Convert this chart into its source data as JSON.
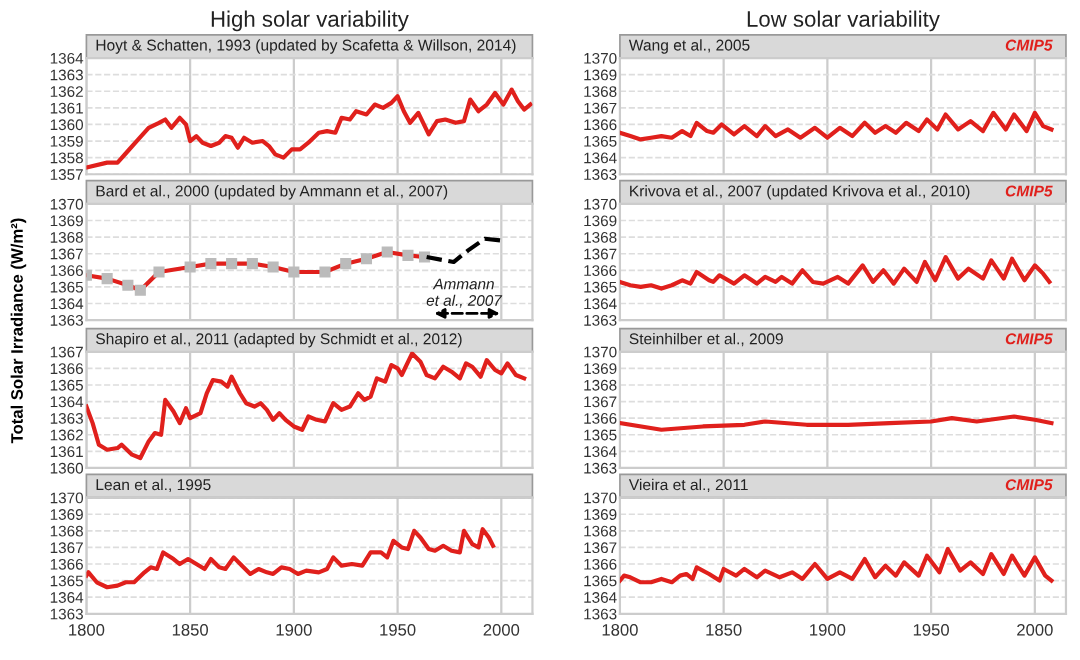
{
  "chart_data": [
    {
      "type": "line",
      "title": "High solar variability",
      "subtitle": "Hoyt & Schatten, 1993 (updated by Scafetta & Willson, 2014)",
      "xlim": [
        1800,
        2015
      ],
      "xticks": [
        1800,
        1850,
        1900,
        1950,
        2000
      ],
      "ylim": [
        1357,
        1364
      ],
      "yticks": [
        1357,
        1358,
        1359,
        1360,
        1361,
        1362,
        1363,
        1364
      ],
      "grid": true,
      "tick_labels": "y",
      "series": [
        {
          "color": "#e0201c",
          "x": [
            1800,
            1810,
            1815,
            1820,
            1825,
            1830,
            1835,
            1838,
            1841,
            1845,
            1848,
            1850,
            1853,
            1856,
            1860,
            1864,
            1867,
            1870,
            1873,
            1876,
            1880,
            1885,
            1888,
            1891,
            1895,
            1899,
            1903,
            1907,
            1912,
            1916,
            1920,
            1923,
            1927,
            1930,
            1935,
            1939,
            1943,
            1947,
            1950,
            1953,
            1956,
            1960,
            1965,
            1969,
            1973,
            1978,
            1982,
            1985,
            1989,
            1993,
            1997,
            2001,
            2005,
            2008,
            2011,
            2014
          ],
          "values": [
            1357.4,
            1357.7,
            1357.7,
            1358.4,
            1359.1,
            1359.8,
            1360.1,
            1360.3,
            1359.8,
            1360.4,
            1360.0,
            1359.0,
            1359.3,
            1358.9,
            1358.7,
            1358.9,
            1359.3,
            1359.2,
            1358.6,
            1359.2,
            1358.9,
            1359.0,
            1358.7,
            1358.2,
            1358.0,
            1358.5,
            1358.5,
            1358.9,
            1359.5,
            1359.6,
            1359.5,
            1360.4,
            1360.3,
            1360.8,
            1360.6,
            1361.2,
            1361.0,
            1361.3,
            1361.7,
            1360.8,
            1360.1,
            1360.7,
            1359.4,
            1360.2,
            1360.3,
            1360.1,
            1360.2,
            1361.5,
            1360.8,
            1361.2,
            1361.9,
            1361.2,
            1362.1,
            1361.4,
            1360.9,
            1361.2
          ]
        }
      ]
    },
    {
      "type": "line",
      "subtitle": "Bard et al., 2000 (updated by Ammann et al., 2007)",
      "ylabel": "Total Solar Irradiance (W/m²)",
      "xlim": [
        1800,
        2015
      ],
      "xticks": [
        1800,
        1850,
        1900,
        1950,
        2000
      ],
      "ylim": [
        1363,
        1370
      ],
      "yticks": [
        1363,
        1364,
        1365,
        1366,
        1367,
        1368,
        1369,
        1370
      ],
      "grid": true,
      "tick_labels": "y",
      "annotations": [
        "Ammann\net al., 2007"
      ],
      "series": [
        {
          "color": "#e0201c",
          "marker": "square",
          "x": [
            1800,
            1810,
            1820,
            1826,
            1835,
            1850,
            1860,
            1870,
            1880,
            1890,
            1900,
            1915,
            1925,
            1935,
            1945,
            1955,
            1963
          ],
          "values": [
            1365.7,
            1365.5,
            1365.1,
            1364.8,
            1365.9,
            1366.2,
            1366.4,
            1366.4,
            1366.4,
            1366.2,
            1365.9,
            1365.9,
            1366.4,
            1366.7,
            1367.1,
            1366.9,
            1366.8
          ]
        },
        {
          "color": "#000000",
          "line_style": "dashed",
          "x": [
            1964,
            1977,
            1984,
            1992,
            2000
          ],
          "values": [
            1366.8,
            1366.5,
            1367.2,
            1367.9,
            1367.8
          ]
        }
      ]
    },
    {
      "type": "line",
      "subtitle": "Shapiro et al., 2011 (adapted by Schmidt et al., 2012)",
      "xlim": [
        1800,
        2015
      ],
      "xticks": [
        1800,
        1850,
        1900,
        1950,
        2000
      ],
      "ylim": [
        1360,
        1367
      ],
      "yticks": [
        1360,
        1361,
        1362,
        1363,
        1364,
        1365,
        1366,
        1367
      ],
      "grid": true,
      "tick_labels": "y",
      "series": [
        {
          "color": "#e0201c",
          "x": [
            1800,
            1803,
            1806,
            1810,
            1815,
            1817,
            1822,
            1826,
            1830,
            1833,
            1836,
            1838,
            1842,
            1845,
            1848,
            1850,
            1855,
            1858,
            1861,
            1865,
            1868,
            1870,
            1874,
            1877,
            1881,
            1884,
            1887,
            1890,
            1893,
            1896,
            1900,
            1904,
            1907,
            1911,
            1915,
            1919,
            1923,
            1927,
            1931,
            1934,
            1937,
            1940,
            1944,
            1947,
            1950,
            1952,
            1957,
            1961,
            1964,
            1968,
            1972,
            1976,
            1980,
            1983,
            1986,
            1990,
            1993,
            1997,
            2000,
            2003,
            2007,
            2011
          ],
          "values": [
            1363.7,
            1362.7,
            1361.4,
            1361.1,
            1361.2,
            1361.4,
            1360.8,
            1360.6,
            1361.6,
            1362.1,
            1362.0,
            1364.1,
            1363.4,
            1362.7,
            1363.6,
            1363.0,
            1363.3,
            1364.5,
            1365.3,
            1365.2,
            1364.9,
            1365.5,
            1364.5,
            1363.9,
            1363.7,
            1363.9,
            1363.5,
            1362.9,
            1363.3,
            1362.9,
            1362.5,
            1362.3,
            1363.1,
            1362.9,
            1362.8,
            1363.9,
            1363.5,
            1363.7,
            1364.5,
            1364.1,
            1364.3,
            1365.4,
            1365.2,
            1366.2,
            1366.0,
            1365.6,
            1366.9,
            1366.4,
            1365.6,
            1365.4,
            1366.1,
            1365.8,
            1365.4,
            1366.3,
            1366.1,
            1365.5,
            1366.5,
            1365.9,
            1365.7,
            1366.3,
            1365.6,
            1365.4
          ]
        }
      ]
    },
    {
      "type": "line",
      "subtitle": "Lean et al., 1995",
      "xlim": [
        1800,
        2015
      ],
      "xticks": [
        1800,
        1850,
        1900,
        1950,
        2000
      ],
      "ylim": [
        1363,
        1370
      ],
      "yticks": [
        1363,
        1364,
        1365,
        1366,
        1367,
        1368,
        1369,
        1370
      ],
      "grid": true,
      "series": [
        {
          "color": "#e0201c",
          "x": [
            1800,
            1801,
            1805,
            1810,
            1815,
            1819,
            1823,
            1828,
            1831,
            1834,
            1837,
            1842,
            1845,
            1849,
            1853,
            1857,
            1860,
            1864,
            1867,
            1871,
            1875,
            1879,
            1883,
            1887,
            1890,
            1894,
            1898,
            1902,
            1906,
            1912,
            1916,
            1919,
            1923,
            1928,
            1933,
            1937,
            1942,
            1945,
            1948,
            1952,
            1955,
            1958,
            1961,
            1965,
            1968,
            1972,
            1976,
            1980,
            1982,
            1986,
            1989,
            1991,
            1994,
            1996
          ],
          "values": [
            1365.3,
            1365.5,
            1364.9,
            1364.6,
            1364.7,
            1364.9,
            1364.9,
            1365.5,
            1365.8,
            1365.7,
            1366.7,
            1366.3,
            1366.0,
            1366.3,
            1366.0,
            1365.7,
            1366.3,
            1365.8,
            1365.7,
            1366.4,
            1365.9,
            1365.4,
            1365.7,
            1365.5,
            1365.4,
            1365.8,
            1365.7,
            1365.4,
            1365.6,
            1365.5,
            1365.7,
            1366.4,
            1365.9,
            1366.0,
            1365.9,
            1366.7,
            1366.7,
            1366.4,
            1367.4,
            1367.0,
            1366.9,
            1368.0,
            1367.6,
            1366.9,
            1366.8,
            1367.1,
            1366.8,
            1366.7,
            1368.0,
            1367.2,
            1367.0,
            1368.1,
            1367.6,
            1367.1
          ]
        }
      ]
    },
    {
      "type": "line",
      "title": "Low solar variability",
      "subtitle": "Wang et al., 2005",
      "annotations": [
        "CMIP5"
      ],
      "xlim": [
        1800,
        2015
      ],
      "xticks": [
        1800,
        1850,
        1900,
        1950,
        2000
      ],
      "ylim": [
        1363,
        1370
      ],
      "yticks": [
        1363,
        1364,
        1365,
        1366,
        1367,
        1368,
        1369,
        1370
      ],
      "grid": true,
      "tick_labels": "y",
      "series": [
        {
          "color": "#e0201c",
          "x": [
            1800,
            1805,
            1810,
            1815,
            1820,
            1825,
            1830,
            1834,
            1837,
            1842,
            1845,
            1849,
            1855,
            1860,
            1866,
            1870,
            1875,
            1881,
            1887,
            1894,
            1900,
            1906,
            1912,
            1918,
            1923,
            1928,
            1933,
            1938,
            1944,
            1948,
            1953,
            1957,
            1963,
            1969,
            1975,
            1980,
            1986,
            1990,
            1996,
            2000,
            2004,
            2008
          ],
          "values": [
            1365.5,
            1365.3,
            1365.1,
            1365.2,
            1365.3,
            1365.2,
            1365.6,
            1365.3,
            1366.1,
            1365.6,
            1365.5,
            1366.0,
            1365.4,
            1365.9,
            1365.3,
            1365.9,
            1365.3,
            1365.7,
            1365.2,
            1365.8,
            1365.2,
            1365.8,
            1365.3,
            1366.1,
            1365.5,
            1365.9,
            1365.5,
            1366.1,
            1365.6,
            1366.3,
            1365.7,
            1366.6,
            1365.7,
            1366.2,
            1365.6,
            1366.7,
            1365.7,
            1366.6,
            1365.6,
            1366.7,
            1365.9,
            1365.7
          ]
        }
      ]
    },
    {
      "type": "line",
      "subtitle": "Krivova et al., 2007 (updated Krivova et al., 2010)",
      "annotations": [
        "CMIP5"
      ],
      "xlim": [
        1800,
        2015
      ],
      "xticks": [
        1800,
        1850,
        1900,
        1950,
        2000
      ],
      "ylim": [
        1363,
        1370
      ],
      "yticks": [
        1363,
        1364,
        1365,
        1366,
        1367,
        1368,
        1369,
        1370
      ],
      "grid": true,
      "tick_labels": "y",
      "series": [
        {
          "color": "#e0201c",
          "x": [
            1800,
            1805,
            1810,
            1815,
            1820,
            1825,
            1830,
            1834,
            1837,
            1843,
            1845,
            1848,
            1855,
            1860,
            1866,
            1870,
            1875,
            1878,
            1883,
            1888,
            1893,
            1898,
            1905,
            1910,
            1917,
            1922,
            1927,
            1932,
            1937,
            1943,
            1947,
            1952,
            1957,
            1963,
            1968,
            1975,
            1979,
            1985,
            1989,
            1995,
            2000,
            2004,
            2007
          ],
          "values": [
            1365.3,
            1365.1,
            1365.0,
            1365.1,
            1364.9,
            1365.1,
            1365.4,
            1365.2,
            1365.9,
            1365.4,
            1365.3,
            1365.7,
            1365.2,
            1365.7,
            1365.2,
            1365.6,
            1365.3,
            1365.6,
            1365.2,
            1366.0,
            1365.3,
            1365.2,
            1365.6,
            1365.2,
            1366.3,
            1365.3,
            1366.0,
            1365.2,
            1366.1,
            1365.3,
            1366.5,
            1365.4,
            1366.8,
            1365.5,
            1366.1,
            1365.5,
            1366.6,
            1365.5,
            1366.7,
            1365.4,
            1366.3,
            1365.8,
            1365.3
          ]
        }
      ]
    },
    {
      "type": "line",
      "subtitle": "Steinhilber et al., 2009",
      "annotations": [
        "CMIP5"
      ],
      "xlim": [
        1800,
        2015
      ],
      "xticks": [
        1800,
        1850,
        1900,
        1950,
        2000
      ],
      "ylim": [
        1363,
        1370
      ],
      "yticks": [
        1363,
        1364,
        1365,
        1366,
        1367,
        1368,
        1369,
        1370
      ],
      "grid": true,
      "tick_labels": "y",
      "series": [
        {
          "color": "#e0201c",
          "x": [
            1800,
            1820,
            1840,
            1860,
            1870,
            1890,
            1910,
            1930,
            1950,
            1960,
            1972,
            1990,
            2000,
            2008
          ],
          "values": [
            1365.7,
            1365.3,
            1365.5,
            1365.6,
            1365.8,
            1365.6,
            1365.6,
            1365.7,
            1365.8,
            1366.0,
            1365.8,
            1366.1,
            1365.9,
            1365.7
          ]
        }
      ]
    },
    {
      "type": "line",
      "subtitle": "Vieira et al., 2011",
      "annotations": [
        "CMIP5"
      ],
      "xlim": [
        1800,
        2015
      ],
      "xticks": [
        1800,
        1850,
        1900,
        1950,
        2000
      ],
      "ylim": [
        1363,
        1370
      ],
      "yticks": [
        1363,
        1364,
        1365,
        1366,
        1367,
        1368,
        1369,
        1370
      ],
      "grid": true,
      "series": [
        {
          "color": "#e0201c",
          "x": [
            1800,
            1802,
            1805,
            1810,
            1815,
            1820,
            1825,
            1829,
            1832,
            1835,
            1837,
            1843,
            1848,
            1850,
            1856,
            1860,
            1866,
            1870,
            1877,
            1883,
            1888,
            1894,
            1900,
            1906,
            1912,
            1918,
            1923,
            1928,
            1933,
            1937,
            1944,
            1948,
            1954,
            1958,
            1964,
            1969,
            1975,
            1979,
            1985,
            1989,
            1995,
            2000,
            2005,
            2008
          ],
          "values": [
            1365.0,
            1365.3,
            1365.2,
            1364.9,
            1364.9,
            1365.1,
            1364.9,
            1365.3,
            1365.4,
            1365.1,
            1365.8,
            1365.4,
            1365.0,
            1365.7,
            1365.3,
            1365.7,
            1365.2,
            1365.6,
            1365.2,
            1365.5,
            1365.1,
            1366.0,
            1365.1,
            1365.5,
            1365.1,
            1366.3,
            1365.2,
            1365.9,
            1365.3,
            1366.1,
            1365.3,
            1366.5,
            1365.5,
            1366.9,
            1365.6,
            1366.1,
            1365.4,
            1366.6,
            1365.4,
            1366.5,
            1365.3,
            1366.4,
            1365.3,
            1365.0
          ]
        }
      ]
    }
  ]
}
